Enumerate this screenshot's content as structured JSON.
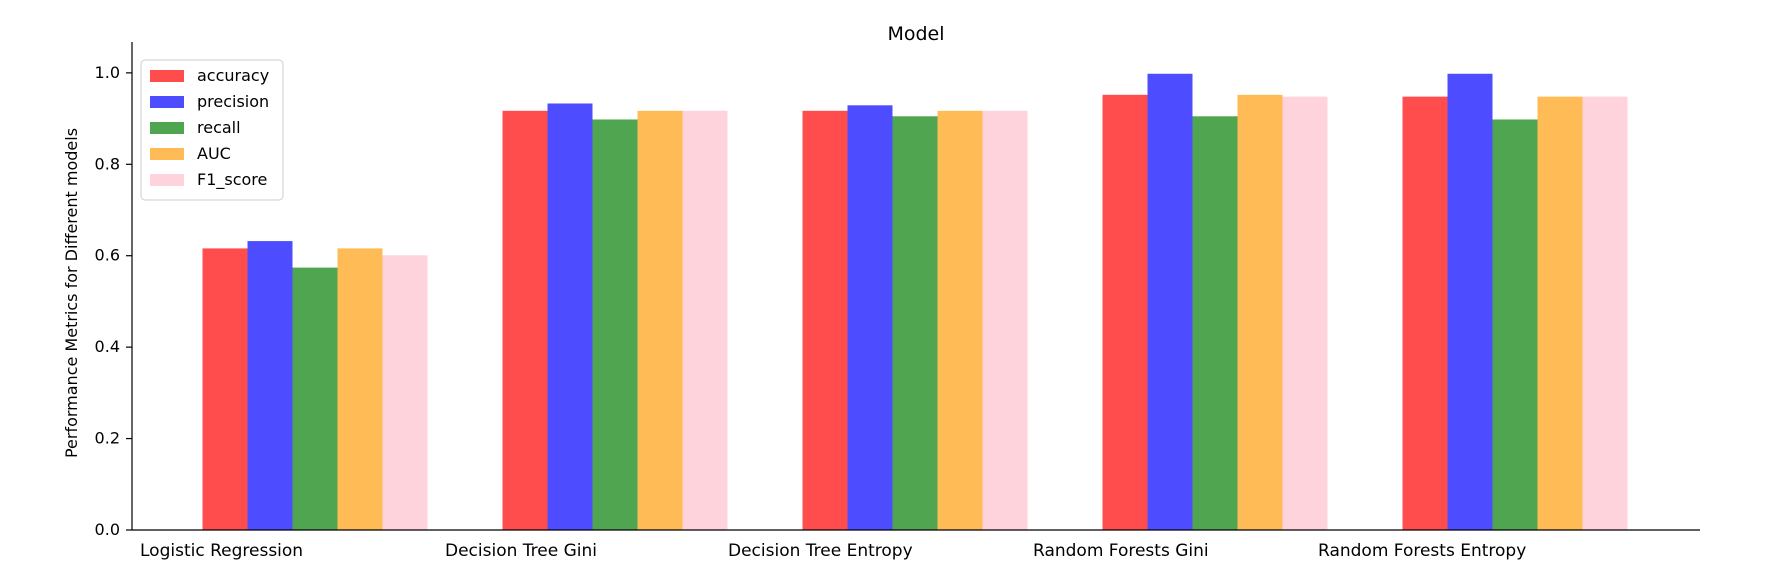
{
  "chart_data": {
    "type": "bar",
    "title": "Model",
    "xlabel": "",
    "ylabel": "Performance Metrics for Different models",
    "ylim": [
      0,
      1.05
    ],
    "yticks": [
      "0.0",
      "0.2",
      "0.4",
      "0.6",
      "0.8",
      "1.0"
    ],
    "categories": [
      "Logistic Regression",
      "Decision Tree Gini",
      "Decision Tree Entropy",
      "Random Forests Gini",
      "Random Forests Entropy"
    ],
    "series": [
      {
        "name": "accuracy",
        "color": "#ff4d4d",
        "values": [
          0.616,
          0.917,
          0.917,
          0.952,
          0.948
        ]
      },
      {
        "name": "precision",
        "color": "#4d4dff",
        "values": [
          0.632,
          0.933,
          0.929,
          0.998,
          0.998
        ]
      },
      {
        "name": "recall",
        "color": "#50a550",
        "values": [
          0.574,
          0.898,
          0.905,
          0.905,
          0.898
        ]
      },
      {
        "name": "AUC",
        "color": "#ffbb55",
        "values": [
          0.616,
          0.917,
          0.917,
          0.952,
          0.948
        ]
      },
      {
        "name": "F1_score",
        "color": "#ffd3dc",
        "values": [
          0.601,
          0.917,
          0.917,
          0.948,
          0.948
        ]
      }
    ],
    "legend_position": "top-left",
    "grid": false
  }
}
